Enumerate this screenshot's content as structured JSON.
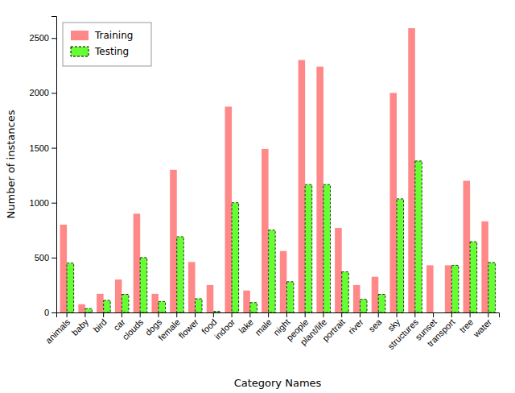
{
  "chart_data": {
    "type": "bar",
    "categories": [
      "animals",
      "baby",
      "bird",
      "car",
      "clouds",
      "dogs",
      "female",
      "flower",
      "food",
      "indoor",
      "lake",
      "male",
      "night",
      "people",
      "plant/life",
      "portrait",
      "river",
      "sea",
      "sky",
      "structures",
      "sunset",
      "transport",
      "tree",
      "water"
    ],
    "series": [
      {
        "name": "Training",
        "color": "#FF8888",
        "values": [
          800,
          75,
          170,
          300,
          900,
          170,
          1300,
          460,
          250,
          1875,
          200,
          1490,
          560,
          2300,
          2240,
          770,
          250,
          325,
          2000,
          2590,
          430,
          430,
          1200,
          830
        ]
      },
      {
        "name": "Testing",
        "color": "#66FF33",
        "values": [
          450,
          35,
          110,
          165,
          500,
          100,
          690,
          125,
          10,
          1000,
          90,
          750,
          280,
          1165,
          1165,
          370,
          120,
          165,
          1035,
          1380,
          0,
          430,
          645,
          455
        ]
      }
    ],
    "xlabel": "Category Names",
    "ylabel": "Number of instances",
    "ylim": [
      0,
      2700
    ],
    "yticks": [
      0,
      500,
      1000,
      1500,
      2000,
      2500
    ],
    "grid": false,
    "legend": "upper left"
  }
}
